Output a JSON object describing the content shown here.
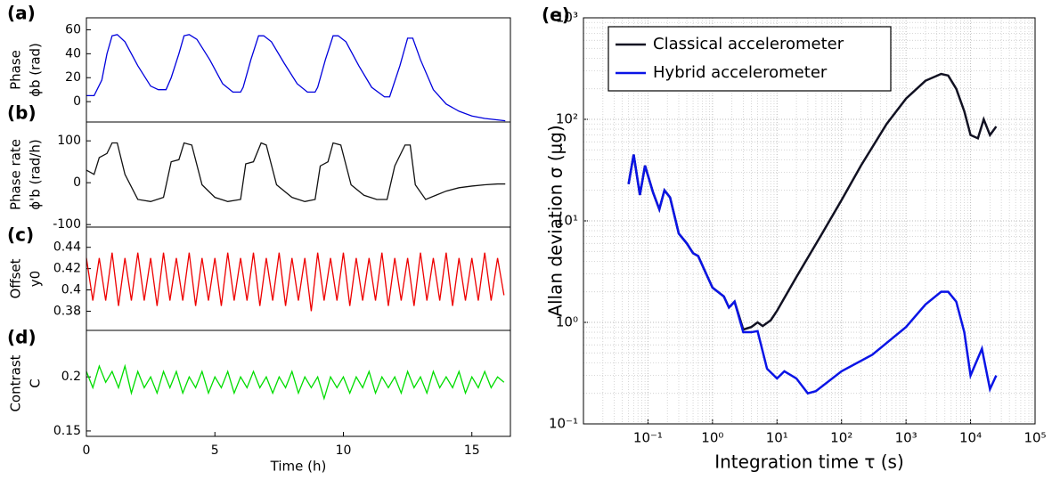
{
  "chart_data": [
    {
      "type": "line",
      "label": "(a)",
      "ylabel": [
        "Phase",
        "ϕb (rad)"
      ],
      "color": "#0000dd",
      "x": [
        0,
        0.3,
        0.6,
        0.8,
        1.0,
        1.2,
        1.5,
        2.0,
        2.5,
        2.8,
        3.1,
        3.3,
        3.6,
        3.8,
        4.0,
        4.3,
        4.8,
        5.3,
        5.7,
        6.0,
        6.1,
        6.4,
        6.7,
        6.9,
        7.2,
        7.7,
        8.2,
        8.6,
        8.9,
        9.0,
        9.3,
        9.6,
        9.8,
        10.1,
        10.6,
        11.1,
        11.6,
        11.8,
        12.2,
        12.5,
        12.7,
        13.0,
        13.5,
        14.0,
        14.5,
        15.0,
        15.5,
        16.3
      ],
      "values": [
        5,
        5,
        18,
        40,
        55,
        56,
        50,
        30,
        13,
        10,
        10,
        20,
        40,
        55,
        56,
        52,
        35,
        15,
        8,
        8,
        12,
        35,
        55,
        55,
        50,
        32,
        15,
        8,
        8,
        12,
        35,
        55,
        55,
        50,
        30,
        12,
        4,
        4,
        30,
        53,
        53,
        35,
        10,
        -2,
        -8,
        -12,
        -14,
        -16
      ],
      "xlim": [
        0,
        16.5
      ],
      "ylim": [
        -17,
        70
      ],
      "yticks": [
        0,
        20,
        40,
        60
      ]
    },
    {
      "type": "line",
      "label": "(b)",
      "ylabel": [
        "Phase rate",
        "ϕ'b (rad/h)"
      ],
      "color": "#111111",
      "x": [
        0,
        0.3,
        0.5,
        0.8,
        1.0,
        1.2,
        1.5,
        2.0,
        2.5,
        3.0,
        3.3,
        3.6,
        3.8,
        4.1,
        4.5,
        5.0,
        5.5,
        6.0,
        6.2,
        6.5,
        6.8,
        7.0,
        7.4,
        8.0,
        8.5,
        8.9,
        9.1,
        9.4,
        9.6,
        9.9,
        10.3,
        10.8,
        11.3,
        11.7,
        12.0,
        12.4,
        12.6,
        12.8,
        13.2,
        13.6,
        14.0,
        14.5,
        15.0,
        15.5,
        16.0,
        16.3
      ],
      "values": [
        30,
        20,
        60,
        70,
        95,
        95,
        20,
        -40,
        -45,
        -35,
        50,
        55,
        95,
        90,
        -5,
        -35,
        -45,
        -40,
        45,
        50,
        95,
        90,
        -5,
        -35,
        -45,
        -40,
        40,
        50,
        95,
        90,
        -5,
        -30,
        -40,
        -40,
        40,
        90,
        90,
        -5,
        -40,
        -30,
        -20,
        -12,
        -8,
        -5,
        -3,
        -3
      ],
      "xlim": [
        0,
        16.5
      ],
      "ylim": [
        -106,
        145
      ],
      "yticks": [
        -100,
        0,
        100
      ]
    },
    {
      "type": "line",
      "label": "(c)",
      "ylabel": [
        "Offset",
        "y0"
      ],
      "color": "#ee0000",
      "x": [
        0,
        0.25,
        0.5,
        0.75,
        1,
        1.25,
        1.5,
        1.75,
        2,
        2.25,
        2.5,
        2.75,
        3,
        3.25,
        3.5,
        3.75,
        4,
        4.25,
        4.5,
        4.75,
        5,
        5.25,
        5.5,
        5.75,
        6,
        6.25,
        6.5,
        6.75,
        7,
        7.25,
        7.5,
        7.75,
        8,
        8.25,
        8.5,
        8.75,
        9,
        9.25,
        9.5,
        9.75,
        10,
        10.25,
        10.5,
        10.75,
        11,
        11.25,
        11.5,
        11.75,
        12,
        12.25,
        12.5,
        12.75,
        13,
        13.25,
        13.5,
        13.75,
        14,
        14.25,
        14.5,
        14.75,
        15,
        15.25,
        15.5,
        15.75,
        16,
        16.25
      ],
      "values": [
        0.43,
        0.39,
        0.43,
        0.39,
        0.435,
        0.385,
        0.43,
        0.39,
        0.435,
        0.39,
        0.43,
        0.385,
        0.435,
        0.39,
        0.43,
        0.39,
        0.435,
        0.385,
        0.43,
        0.39,
        0.43,
        0.385,
        0.435,
        0.39,
        0.43,
        0.39,
        0.435,
        0.385,
        0.43,
        0.39,
        0.435,
        0.385,
        0.43,
        0.39,
        0.43,
        0.38,
        0.435,
        0.39,
        0.43,
        0.39,
        0.435,
        0.385,
        0.43,
        0.39,
        0.43,
        0.39,
        0.435,
        0.385,
        0.43,
        0.39,
        0.43,
        0.385,
        0.435,
        0.39,
        0.43,
        0.39,
        0.435,
        0.385,
        0.43,
        0.39,
        0.43,
        0.39,
        0.435,
        0.39,
        0.43,
        0.395
      ],
      "xlim": [
        0,
        16.5
      ],
      "ylim": [
        0.362,
        0.459
      ],
      "yticks": [
        0.38,
        0.4,
        0.42,
        0.44
      ]
    },
    {
      "type": "line",
      "label": "(d)",
      "ylabel": [
        "Contrast",
        "C"
      ],
      "xlabel": "Time (h)",
      "color": "#00dd00",
      "x": [
        0,
        0.25,
        0.5,
        0.75,
        1,
        1.25,
        1.5,
        1.75,
        2,
        2.25,
        2.5,
        2.75,
        3,
        3.25,
        3.5,
        3.75,
        4,
        4.25,
        4.5,
        4.75,
        5,
        5.25,
        5.5,
        5.75,
        6,
        6.25,
        6.5,
        6.75,
        7,
        7.25,
        7.5,
        7.75,
        8,
        8.25,
        8.5,
        8.75,
        9,
        9.25,
        9.5,
        9.75,
        10,
        10.25,
        10.5,
        10.75,
        11,
        11.25,
        11.5,
        11.75,
        12,
        12.25,
        12.5,
        12.75,
        13,
        13.25,
        13.5,
        13.75,
        14,
        14.25,
        14.5,
        14.75,
        15,
        15.25,
        15.5,
        15.75,
        16,
        16.25
      ],
      "values": [
        0.205,
        0.19,
        0.21,
        0.195,
        0.205,
        0.19,
        0.21,
        0.185,
        0.205,
        0.19,
        0.2,
        0.185,
        0.205,
        0.19,
        0.205,
        0.185,
        0.2,
        0.19,
        0.205,
        0.185,
        0.2,
        0.19,
        0.205,
        0.185,
        0.2,
        0.19,
        0.205,
        0.19,
        0.2,
        0.185,
        0.2,
        0.19,
        0.205,
        0.185,
        0.2,
        0.19,
        0.2,
        0.18,
        0.2,
        0.19,
        0.2,
        0.185,
        0.2,
        0.19,
        0.205,
        0.185,
        0.2,
        0.19,
        0.2,
        0.185,
        0.205,
        0.19,
        0.2,
        0.185,
        0.205,
        0.19,
        0.2,
        0.19,
        0.205,
        0.185,
        0.2,
        0.19,
        0.205,
        0.19,
        0.2,
        0.195
      ],
      "xlim": [
        0,
        16.5
      ],
      "xticks": [
        0,
        5,
        10,
        15
      ],
      "ylim": [
        0.145,
        0.243
      ],
      "yticks": [
        0.15,
        0.2
      ]
    },
    {
      "type": "line",
      "label": "(e)",
      "ylabel": [
        "Allan deviation σ (μg)"
      ],
      "xlabel": "Integration time τ (s)",
      "log": true,
      "grid": true,
      "legend": "top-left",
      "xlim": [
        0.01,
        100000
      ],
      "ylim": [
        0.1,
        1000
      ],
      "xticks": [
        {
          "value": 0.1,
          "label": "10⁻¹"
        },
        {
          "value": 1,
          "label": "10⁰"
        },
        {
          "value": 10,
          "label": "10¹"
        },
        {
          "value": 100,
          "label": "10²"
        },
        {
          "value": 1000,
          "label": "10³"
        },
        {
          "value": 10000,
          "label": "10⁴"
        },
        {
          "value": 100000,
          "label": "10⁵"
        }
      ],
      "yticks": [
        {
          "value": 0.1,
          "label": "10⁻¹"
        },
        {
          "value": 1,
          "label": "10⁰"
        },
        {
          "value": 10,
          "label": "10¹"
        },
        {
          "value": 100,
          "label": "10²"
        },
        {
          "value": 1000,
          "label": "10³"
        }
      ],
      "series": [
        {
          "name": "Classical accelerometer",
          "color": "#111122",
          "x": [
            0.05,
            0.06,
            0.075,
            0.09,
            0.12,
            0.15,
            0.18,
            0.22,
            0.3,
            0.4,
            0.5,
            0.6,
            0.8,
            1,
            1.5,
            1.8,
            2,
            2.2,
            3,
            4,
            5,
            6,
            8,
            10,
            20,
            50,
            100,
            200,
            500,
            1000,
            2000,
            3500,
            4500,
            6000,
            8000,
            10000,
            13000,
            16000,
            20000,
            25000
          ],
          "values": [
            23,
            45,
            18,
            35,
            19,
            13,
            20,
            17,
            7.5,
            6,
            4.8,
            4.5,
            3,
            2.2,
            1.8,
            1.4,
            1.5,
            1.6,
            0.85,
            0.9,
            1.0,
            0.92,
            1.05,
            1.3,
            2.8,
            7.5,
            16,
            35,
            90,
            160,
            240,
            280,
            270,
            200,
            120,
            70,
            65,
            100,
            70,
            85
          ]
        },
        {
          "name": "Hybrid accelerometer",
          "color": "#0a14e6",
          "x": [
            0.05,
            0.06,
            0.075,
            0.09,
            0.12,
            0.15,
            0.18,
            0.22,
            0.3,
            0.4,
            0.5,
            0.6,
            0.8,
            1,
            1.5,
            1.8,
            2,
            2.2,
            3,
            4,
            5,
            7,
            10,
            13,
            20,
            30,
            40,
            100,
            300,
            1000,
            2000,
            3500,
            4500,
            6000,
            8000,
            10000,
            15000,
            20000,
            25000
          ],
          "values": [
            23,
            45,
            18,
            35,
            19,
            13,
            20,
            17,
            7.5,
            6,
            4.8,
            4.5,
            3,
            2.2,
            1.8,
            1.4,
            1.5,
            1.6,
            0.8,
            0.8,
            0.82,
            0.35,
            0.28,
            0.33,
            0.28,
            0.2,
            0.21,
            0.33,
            0.48,
            0.9,
            1.5,
            2.0,
            2.0,
            1.6,
            0.8,
            0.3,
            0.55,
            0.22,
            0.3
          ]
        }
      ]
    }
  ]
}
